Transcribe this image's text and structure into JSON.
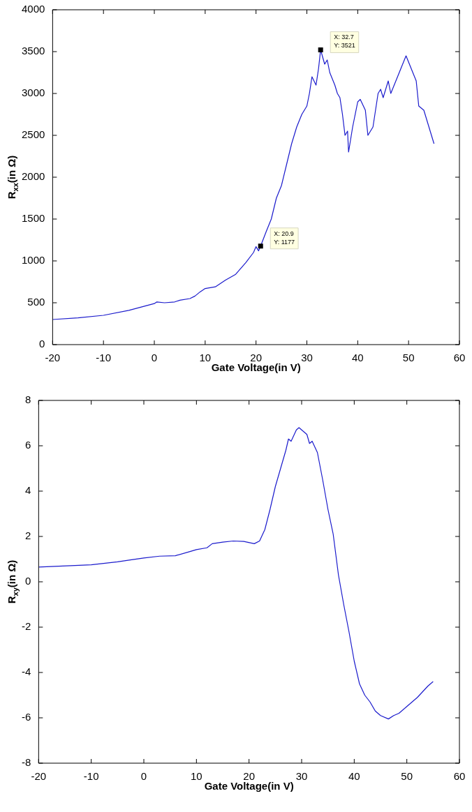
{
  "chart_data": [
    {
      "type": "line",
      "xlabel": "Gate Voltage(in V)",
      "ylabel": "R$_{xx}$(in Ω)",
      "x": [
        -20,
        -15,
        -10,
        -5,
        0,
        0.5,
        2,
        4,
        5,
        7,
        8,
        9,
        10,
        12,
        14,
        16,
        18,
        19.5,
        20,
        20.5,
        20.9,
        22,
        23,
        24,
        25,
        26,
        27,
        28,
        29,
        30,
        30.5,
        31,
        31.8,
        32.3,
        32.7,
        33.5,
        34,
        34.5,
        35.5,
        36,
        36.5,
        37,
        37.5,
        38,
        38.2,
        39,
        40,
        40.5,
        41.5,
        42,
        43,
        44,
        44.5,
        45,
        46,
        46.5,
        47.5,
        48.5,
        49.5,
        50.5,
        51.5,
        52,
        53,
        54,
        55
      ],
      "series": [
        {
          "color": "#1a1acc",
          "values": [
            300,
            320,
            350,
            410,
            490,
            510,
            500,
            510,
            530,
            550,
            580,
            630,
            670,
            690,
            770,
            840,
            980,
            1100,
            1170,
            1120,
            1177,
            1350,
            1500,
            1750,
            1900,
            2150,
            2400,
            2600,
            2750,
            2850,
            3000,
            3200,
            3100,
            3300,
            3521,
            3350,
            3400,
            3250,
            3100,
            3000,
            2950,
            2750,
            2500,
            2550,
            2300,
            2600,
            2900,
            2930,
            2800,
            2500,
            2600,
            3000,
            3050,
            2950,
            3150,
            3000,
            3150,
            3300,
            3450,
            3300,
            3150,
            2850,
            2800,
            2600,
            2400
          ]
        }
      ],
      "xlim": [
        -20,
        60
      ],
      "xticks": [
        -20,
        -10,
        0,
        10,
        20,
        30,
        40,
        50,
        60
      ],
      "ylim": [
        0,
        4000
      ],
      "yticks": [
        0,
        500,
        1000,
        1500,
        2000,
        2500,
        3000,
        3500,
        4000
      ],
      "annotations": [
        {
          "text": "X: 32.7\nY: 3521",
          "x": 32.7,
          "y": 3521
        },
        {
          "text": "X: 20.9\nY: 1177",
          "x": 20.9,
          "y": 1177
        }
      ]
    },
    {
      "type": "line",
      "xlabel": "Gate Voltage(in V)",
      "ylabel": "R$_{xy}$(in Ω)",
      "x": [
        -20,
        -10,
        -5,
        -3,
        0,
        3,
        6,
        9,
        10,
        12,
        13,
        15,
        17,
        19,
        21,
        22,
        23,
        24,
        25,
        26,
        27,
        27.5,
        28,
        29,
        29.5,
        30.5,
        31,
        31.5,
        32,
        33,
        34,
        35,
        36,
        37,
        38,
        39,
        40,
        41,
        42,
        43,
        44,
        45,
        46.5,
        47.5,
        48.5,
        50,
        52,
        54,
        55
      ],
      "series": [
        {
          "color": "#1a1acc",
          "values": [
            0.65,
            0.75,
            0.88,
            0.95,
            1.05,
            1.13,
            1.15,
            1.35,
            1.42,
            1.5,
            1.68,
            1.75,
            1.8,
            1.78,
            1.68,
            1.8,
            2.3,
            3.2,
            4.2,
            5.0,
            5.8,
            6.3,
            6.2,
            6.7,
            6.8,
            6.6,
            6.5,
            6.1,
            6.2,
            5.7,
            4.5,
            3.2,
            2.1,
            0.3,
            -1.0,
            -2.2,
            -3.5,
            -4.5,
            -5.0,
            -5.3,
            -5.7,
            -5.9,
            -6.05,
            -5.9,
            -5.8,
            -5.5,
            -5.1,
            -4.6,
            -4.4
          ]
        }
      ],
      "xlim": [
        -20,
        60
      ],
      "xticks": [
        -20,
        -10,
        0,
        10,
        20,
        30,
        40,
        50,
        60
      ],
      "ylim": [
        -8,
        8
      ],
      "yticks": [
        -8,
        -6,
        -4,
        -2,
        0,
        2,
        4,
        6,
        8
      ]
    }
  ]
}
